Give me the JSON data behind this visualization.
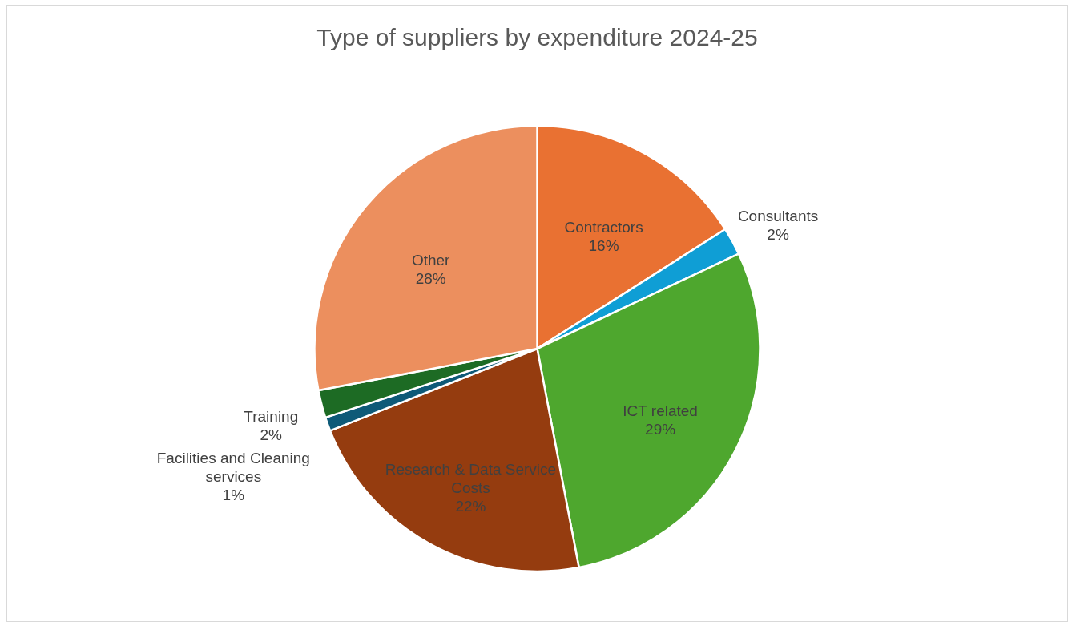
{
  "chart_data": {
    "type": "pie",
    "title": "Type of suppliers by expenditure 2024-25",
    "categories": [
      "Contractors",
      "Consultants",
      "ICT related",
      "Research & Data Service Costs",
      "Facilities and Cleaning services",
      "Training",
      "Other"
    ],
    "values": [
      16,
      2,
      29,
      22,
      1,
      2,
      28
    ],
    "colors": [
      "#e97132",
      "#0f9ed5",
      "#4ea72e",
      "#953c0f",
      "#0e5a78",
      "#1d6b24",
      "#ec8f5e"
    ],
    "value_labels": [
      "16%",
      "2%",
      "29%",
      "22%",
      "1%",
      "2%",
      "28%"
    ],
    "legend": false
  }
}
